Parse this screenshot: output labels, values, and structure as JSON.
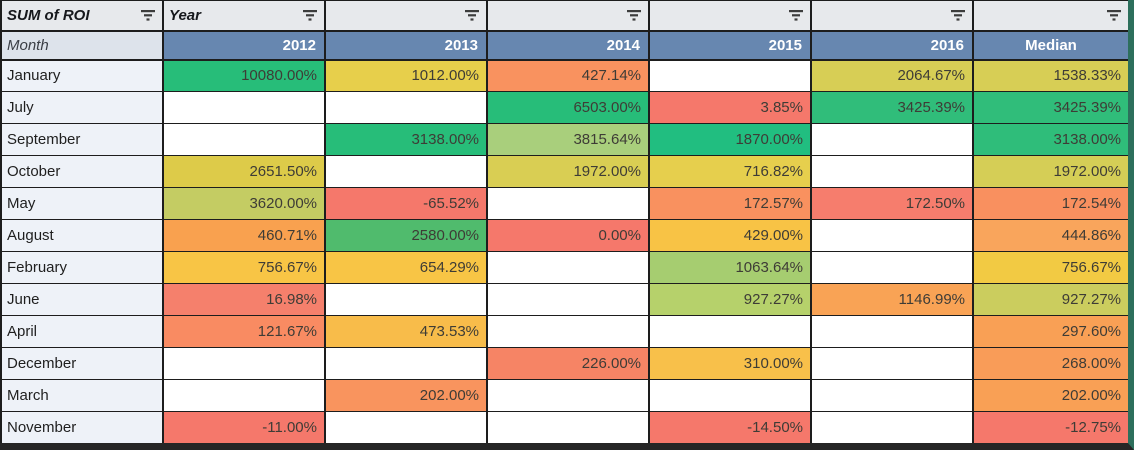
{
  "table": {
    "corner_label": "SUM of ROI",
    "year_label": "Year",
    "month_header": "Month",
    "columns": [
      "2012",
      "2013",
      "2014",
      "2015",
      "2016",
      "Median"
    ],
    "rows": [
      {
        "month": "January",
        "cells": [
          {
            "v": "10080.00%",
            "bg": "#27bd79"
          },
          {
            "v": "1012.00%",
            "bg": "#e7cf4b"
          },
          {
            "v": "427.14%",
            "bg": "#f9925f"
          },
          null,
          {
            "v": "2064.67%",
            "bg": "#d7ce55"
          },
          {
            "v": "1538.33%",
            "bg": "#d7ce55"
          }
        ]
      },
      {
        "month": "July",
        "cells": [
          null,
          null,
          {
            "v": "6503.00%",
            "bg": "#27bd79"
          },
          {
            "v": "3.85%",
            "bg": "#f5786b"
          },
          {
            "v": "3425.39%",
            "bg": "#30bd7a"
          },
          {
            "v": "3425.39%",
            "bg": "#30bd7a"
          }
        ]
      },
      {
        "month": "September",
        "cells": [
          null,
          {
            "v": "3138.00%",
            "bg": "#27bd79"
          },
          {
            "v": "3815.64%",
            "bg": "#a9cf7c"
          },
          {
            "v": "1870.00%",
            "bg": "#21be80"
          },
          null,
          {
            "v": "3138.00%",
            "bg": "#2fbd7a"
          }
        ]
      },
      {
        "month": "October",
        "cells": [
          {
            "v": "2651.50%",
            "bg": "#ddcb49"
          },
          null,
          {
            "v": "1972.00%",
            "bg": "#d9ce53"
          },
          {
            "v": "716.82%",
            "bg": "#e6cf4d"
          },
          null,
          {
            "v": "1972.00%",
            "bg": "#d5ce56"
          }
        ]
      },
      {
        "month": "May",
        "cells": [
          {
            "v": "3620.00%",
            "bg": "#c4cc63"
          },
          {
            "v": "-65.52%",
            "bg": "#f5786b"
          },
          null,
          {
            "v": "172.57%",
            "bg": "#f9915f"
          },
          {
            "v": "172.50%",
            "bg": "#f67d6d"
          },
          {
            "v": "172.54%",
            "bg": "#f9905f"
          }
        ]
      },
      {
        "month": "August",
        "cells": [
          {
            "v": "460.71%",
            "bg": "#f9a14f"
          },
          {
            "v": "2580.00%",
            "bg": "#50bb6d"
          },
          {
            "v": "0.00%",
            "bg": "#f5786b"
          },
          {
            "v": "429.00%",
            "bg": "#f8c345"
          },
          null,
          {
            "v": "444.86%",
            "bg": "#f9a55c"
          }
        ]
      },
      {
        "month": "February",
        "cells": [
          {
            "v": "756.67%",
            "bg": "#f8c545"
          },
          {
            "v": "654.29%",
            "bg": "#f8c545"
          },
          null,
          {
            "v": "1063.64%",
            "bg": "#a6cd70"
          },
          null,
          {
            "v": "756.67%",
            "bg": "#f2ca43"
          }
        ]
      },
      {
        "month": "June",
        "cells": [
          {
            "v": "16.98%",
            "bg": "#f5806c"
          },
          null,
          null,
          {
            "v": "927.27%",
            "bg": "#b6d16b"
          },
          {
            "v": "1146.99%",
            "bg": "#f9a355"
          },
          {
            "v": "927.27%",
            "bg": "#cbcd5e"
          }
        ]
      },
      {
        "month": "April",
        "cells": [
          {
            "v": "121.67%",
            "bg": "#f98b62"
          },
          {
            "v": "473.53%",
            "bg": "#f8bc4a"
          },
          null,
          null,
          null,
          {
            "v": "297.60%",
            "bg": "#f9a055"
          }
        ]
      },
      {
        "month": "December",
        "cells": [
          null,
          null,
          {
            "v": "226.00%",
            "bg": "#f68465"
          },
          {
            "v": "310.00%",
            "bg": "#f8c04a"
          },
          null,
          {
            "v": "268.00%",
            "bg": "#f99c58"
          }
        ]
      },
      {
        "month": "March",
        "cells": [
          null,
          {
            "v": "202.00%",
            "bg": "#f9945e"
          },
          null,
          null,
          null,
          {
            "v": "202.00%",
            "bg": "#f9a055"
          }
        ]
      },
      {
        "month": "November",
        "cells": [
          {
            "v": "-11.00%",
            "bg": "#f5786b"
          },
          null,
          null,
          {
            "v": "-14.50%",
            "bg": "#f5786b"
          },
          null,
          {
            "v": "-12.75%",
            "bg": "#f5786b"
          }
        ]
      }
    ]
  },
  "colors": {
    "year_band": "#6787b0",
    "filter_row_bg": "#e7e9ec",
    "month_col_bg": "#eef2f8",
    "grid_line": "#1d1d1d",
    "edge_right": "#2d6f5c",
    "edge_bottom": "#262626",
    "scale_green": "#27bd79",
    "scale_yellow": "#e7cf4b",
    "scale_orange": "#f9925f",
    "scale_red": "#f5786b"
  }
}
